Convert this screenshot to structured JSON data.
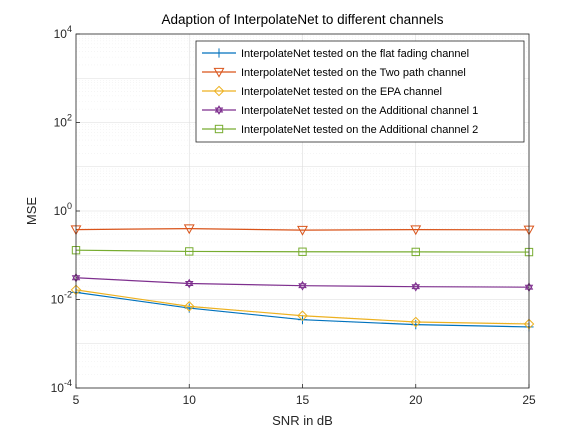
{
  "chart_data": {
    "type": "line",
    "title": "Adaption of InterpolateNet to different channels",
    "xlabel": "SNR in dB",
    "ylabel": "MSE",
    "x": [
      5,
      10,
      15,
      20,
      25
    ],
    "xlim": [
      5,
      25
    ],
    "ylim": [
      0.0001,
      10000
    ],
    "yscale": "log",
    "x_ticks": [
      "5",
      "10",
      "15",
      "20",
      "25"
    ],
    "y_ticks": [
      {
        "base": "10",
        "exp": "-4",
        "value": 0.0001
      },
      {
        "base": "10",
        "exp": "-2",
        "value": 0.01
      },
      {
        "base": "10",
        "exp": "0",
        "value": 1
      },
      {
        "base": "10",
        "exp": "2",
        "value": 100
      },
      {
        "base": "10",
        "exp": "4",
        "value": 10000
      }
    ],
    "grid": true,
    "legend_position": "top-right",
    "series": [
      {
        "name": "InterpolateNet tested on the flat fading channel",
        "marker": "plus",
        "color": "#0072BD",
        "values": [
          0.0145,
          0.0064,
          0.0035,
          0.0027,
          0.0024
        ]
      },
      {
        "name": "InterpolateNet tested on the Two path channel",
        "marker": "triangle-down",
        "color": "#D95319",
        "values": [
          0.38,
          0.4,
          0.37,
          0.38,
          0.375
        ]
      },
      {
        "name": "InterpolateNet tested on the EPA channel",
        "marker": "diamond",
        "color": "#EDB120",
        "values": [
          0.0165,
          0.007,
          0.0043,
          0.0031,
          0.0028
        ]
      },
      {
        "name": "InterpolateNet tested on the Additional channel 1",
        "marker": "hexagram",
        "color": "#7E2F8E",
        "values": [
          0.031,
          0.023,
          0.0205,
          0.0195,
          0.019
        ]
      },
      {
        "name": "InterpolateNet tested on the Additional channel 2",
        "marker": "square",
        "color": "#77AC30",
        "values": [
          0.13,
          0.122,
          0.12,
          0.119,
          0.118
        ]
      }
    ]
  }
}
